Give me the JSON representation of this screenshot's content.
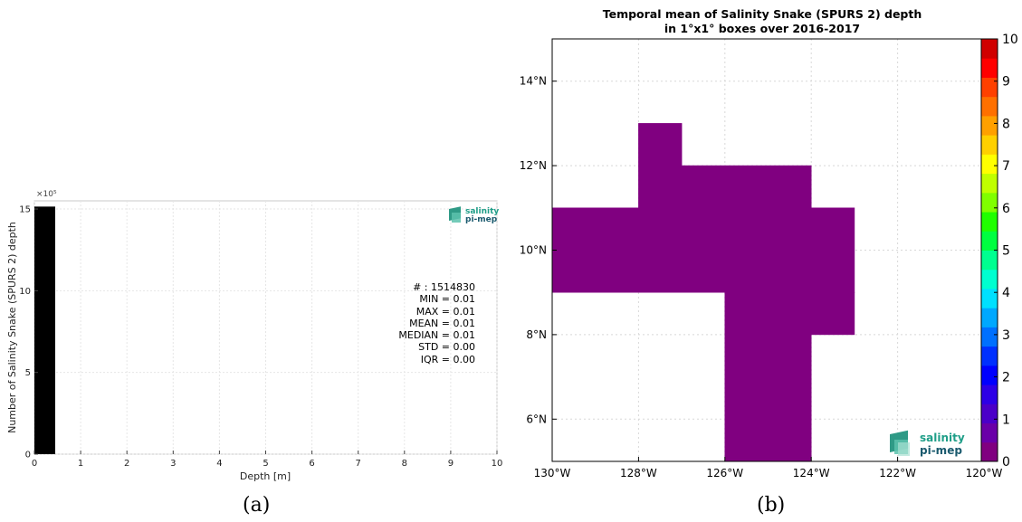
{
  "panels": {
    "a": {
      "label": "(a)"
    },
    "b": {
      "label": "(b)"
    }
  },
  "chart_data": [
    {
      "type": "bar",
      "title": "",
      "xlabel": "Depth [m]",
      "ylabel": "Number of Salinity Snake (SPURS 2) depth",
      "y_multiplier": "×10⁵",
      "xlim": [
        0,
        10
      ],
      "ylim": [
        0,
        15.5
      ],
      "xticks": [
        "0",
        "1",
        "2",
        "3",
        "4",
        "5",
        "6",
        "7",
        "8",
        "9",
        "10"
      ],
      "yticks": [
        "0",
        "5",
        "10",
        "15"
      ],
      "grid": true,
      "bins": [
        {
          "x0": 0,
          "x1": 0.45,
          "value": 15.1483
        }
      ],
      "bar_color": "#000000",
      "logo": {
        "line1": "salinity",
        "line2": "pi-mep"
      },
      "stats": [
        "# : 1514830",
        "MIN = 0.01",
        "MAX =  0.01",
        "MEAN = 0.01",
        "MEDIAN = 0.01",
        "STD = 0.00",
        "IQR = 0.00"
      ]
    },
    {
      "type": "heatmap",
      "title_line1": "Temporal mean of Salinity Snake (SPURS 2) depth",
      "title_line2": "in 1°x1° boxes over 2016-2017",
      "lon_range": [
        -130,
        -120
      ],
      "lat_range": [
        5,
        15
      ],
      "xticks": [
        {
          "value": -130,
          "label": "130°W"
        },
        {
          "value": -128,
          "label": "128°W"
        },
        {
          "value": -126,
          "label": "126°W"
        },
        {
          "value": -124,
          "label": "124°W"
        },
        {
          "value": -122,
          "label": "122°W"
        },
        {
          "value": -120,
          "label": "120°W"
        }
      ],
      "yticks": [
        {
          "value": 6,
          "label": "6°N"
        },
        {
          "value": 8,
          "label": "8°N"
        },
        {
          "value": 10,
          "label": "10°N"
        },
        {
          "value": 12,
          "label": "12°N"
        },
        {
          "value": 14,
          "label": "14°N"
        }
      ],
      "grid": true,
      "cell_value": 0.01,
      "cell_color": "#800080",
      "cells": [
        {
          "lon0": -128,
          "lon1": -127,
          "lat0": 12,
          "lat1": 13
        },
        {
          "lon0": -128,
          "lon1": -124,
          "lat0": 11,
          "lat1": 12
        },
        {
          "lon0": -130,
          "lon1": -123,
          "lat0": 9,
          "lat1": 11
        },
        {
          "lon0": -126,
          "lon1": -123,
          "lat0": 8,
          "lat1": 9
        },
        {
          "lon0": -126,
          "lon1": -124,
          "lat0": 5,
          "lat1": 8
        }
      ],
      "colorbar": {
        "min": 0,
        "max": 10,
        "ticks": [
          "0",
          "1",
          "2",
          "3",
          "4",
          "5",
          "6",
          "7",
          "8",
          "9",
          "10"
        ],
        "colors": [
          "#800080",
          "#6a00a8",
          "#4b00c8",
          "#2d00e6",
          "#0000ff",
          "#0030ff",
          "#0070ff",
          "#00a8ff",
          "#00e0ff",
          "#00ffd0",
          "#00ff90",
          "#00ff40",
          "#20ff00",
          "#80ff00",
          "#c0ff00",
          "#ffff00",
          "#ffd000",
          "#ffa000",
          "#ff7000",
          "#ff4000",
          "#ff0000",
          "#d00000"
        ]
      },
      "logo": {
        "line1": "salinity",
        "line2": "pi-mep"
      }
    }
  ]
}
